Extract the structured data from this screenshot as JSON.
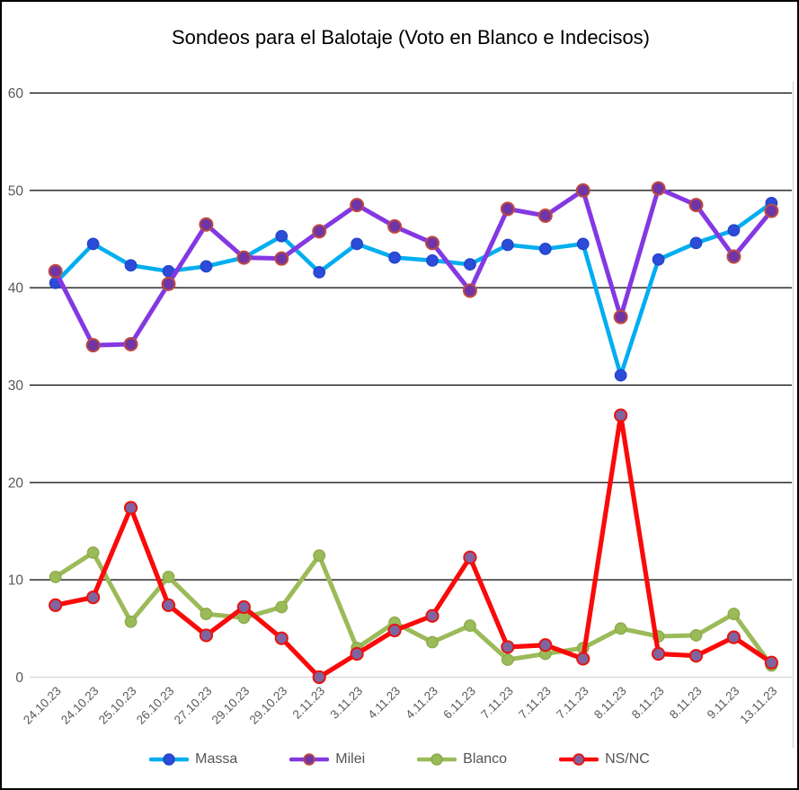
{
  "chart_data": {
    "type": "line",
    "title": "Sondeos para el Balotaje (Voto en Blanco e Indecisos)",
    "categories": [
      "24.10.23",
      "24.10.23",
      "25.10.23",
      "26.10.23",
      "27.10.23",
      "29.10.23",
      "29.10.23",
      "2.11.23",
      "3.11.23",
      "4.11.23",
      "4.11.23",
      "6.11.23",
      "7.11.23",
      "7.11.23",
      "7.11.23",
      "8.11.23",
      "8.11.23",
      "8.11.23",
      "9.11.23",
      "13.11.23"
    ],
    "yticks": [
      0,
      10,
      20,
      30,
      40,
      50,
      60
    ],
    "ylim": [
      0,
      60
    ],
    "grid": "horizontal",
    "gridline_color": "#000000",
    "zero_line_color": "#D9D9D9",
    "plot_right_border_color": "#D9D9D9",
    "axis_label_color": "#595959",
    "legend_position": "bottom-center",
    "series": [
      {
        "name": "Massa",
        "color": "#00AEEF",
        "marker_fill": "#2B4BD8",
        "marker_edge": "#2546C8",
        "values": [
          40.5,
          44.5,
          42.3,
          41.7,
          42.2,
          43.1,
          45.3,
          41.6,
          44.5,
          43.1,
          42.8,
          42.4,
          44.4,
          44.0,
          44.5,
          31.0,
          42.9,
          44.6,
          45.9,
          48.7
        ]
      },
      {
        "name": "Milei",
        "color": "#8438E2",
        "marker_fill": "#6F35A6",
        "marker_edge": "#BE4B40",
        "values": [
          41.7,
          34.1,
          34.2,
          40.4,
          46.5,
          43.1,
          43.0,
          45.8,
          48.5,
          46.3,
          44.6,
          39.7,
          48.1,
          47.4,
          50.0,
          37.0,
          50.2,
          48.5,
          43.2,
          47.9
        ]
      },
      {
        "name": "Blanco",
        "color": "#9BBB59",
        "marker_fill": "#9BBB59",
        "marker_edge": "#8CAB4B",
        "values": [
          10.3,
          12.8,
          5.7,
          10.3,
          6.5,
          6.1,
          7.2,
          12.5,
          3.0,
          5.6,
          3.6,
          5.3,
          1.8,
          2.4,
          3.0,
          5.0,
          4.2,
          4.3,
          6.5,
          1.2
        ]
      },
      {
        "name": "NS/NC",
        "color": "#FA0A0A",
        "marker_fill": "#8064A2",
        "marker_edge": "#E8130C",
        "values": [
          7.4,
          8.2,
          17.4,
          7.4,
          4.3,
          7.2,
          4.0,
          0.0,
          2.4,
          4.8,
          6.3,
          12.3,
          3.1,
          3.3,
          1.9,
          26.9,
          2.4,
          2.2,
          4.1,
          1.5
        ]
      }
    ]
  }
}
